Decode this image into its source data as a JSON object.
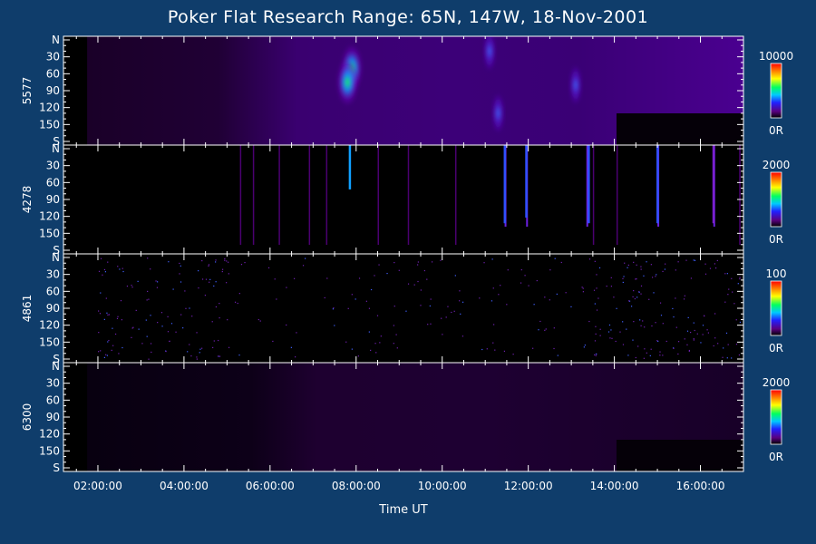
{
  "chart_data": {
    "type": "heatmap",
    "title": "Poker Flat Research Range: 65N, 147W, 18-Nov-2001",
    "xlabel": "Time UT",
    "x_ticks": [
      "02:00:00",
      "04:00:00",
      "06:00:00",
      "08:00:00",
      "10:00:00",
      "12:00:00",
      "14:00:00",
      "16:00:00"
    ],
    "x_range_hours": [
      1.2,
      17.0
    ],
    "y_tick_labels": [
      "N",
      "30",
      "60",
      "90",
      "120",
      "150",
      "S"
    ],
    "y_range": [
      0,
      180
    ],
    "panels": [
      {
        "wavelength": "5577",
        "colorbar_max": "10000",
        "colorbar_min": "0R",
        "features": [
          {
            "t": 7.9,
            "y": 50,
            "level": 0.85
          },
          {
            "t": 7.8,
            "y": 75,
            "level": 0.7
          },
          {
            "t": 11.1,
            "y": 20,
            "level": 0.5
          },
          {
            "t": 13.1,
            "y": 80,
            "level": 0.45
          },
          {
            "t": 11.3,
            "y": 130,
            "level": 0.4
          }
        ]
      },
      {
        "wavelength": "4278",
        "colorbar_max": "2000",
        "colorbar_min": "0R",
        "features": [
          {
            "t": 7.85,
            "y": 40,
            "level": 0.75
          },
          {
            "t": 11.45,
            "y": 100,
            "level": 0.45
          },
          {
            "t": 11.95,
            "y": 90,
            "level": 0.5
          },
          {
            "t": 13.4,
            "y": 100,
            "level": 0.45
          },
          {
            "t": 15.0,
            "y": 100,
            "level": 0.45
          },
          {
            "t": 16.3,
            "y": 100,
            "level": 0.4
          }
        ]
      },
      {
        "wavelength": "4861",
        "colorbar_max": "100",
        "colorbar_min": "0R",
        "features": []
      },
      {
        "wavelength": "6300",
        "colorbar_max": "2000",
        "colorbar_min": "0R",
        "features": []
      }
    ]
  }
}
